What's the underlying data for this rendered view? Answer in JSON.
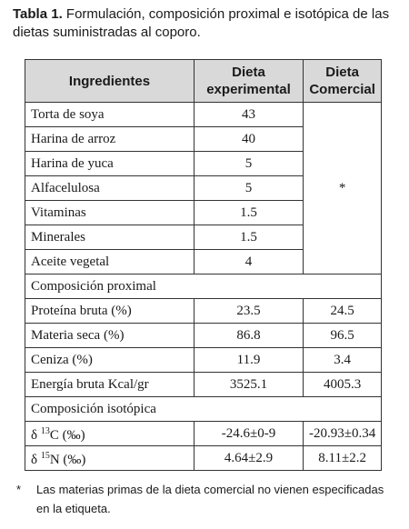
{
  "caption": {
    "label": "Tabla 1.",
    "text": "Formulación, composición proximal e isotópica de las dietas suministradas al coporo."
  },
  "table": {
    "headers": {
      "ingredientes": "Ingredientes",
      "experimental": "Dieta experimental",
      "comercial": "Dieta Comercial"
    },
    "commercial_ingredients_mark": "*",
    "ingredients": [
      {
        "name": "Torta de soya",
        "value": "43"
      },
      {
        "name": "Harina de arroz",
        "value": "40"
      },
      {
        "name": "Harina de yuca",
        "value": "5"
      },
      {
        "name": "Alfacelulosa",
        "value": "5"
      },
      {
        "name": "Vitaminas",
        "value": "1.5"
      },
      {
        "name": "Minerales",
        "value": "1.5"
      },
      {
        "name": "Aceite vegetal",
        "value": "4"
      }
    ],
    "proximal_title": "Composición proximal",
    "proximal": [
      {
        "name": "Proteína bruta (%)",
        "exp": "23.5",
        "com": "24.5"
      },
      {
        "name": "Materia seca (%)",
        "exp": "86.8",
        "com": "96.5"
      },
      {
        "name": "Ceniza (%)",
        "exp": "11.9",
        "com": "3.4"
      },
      {
        "name": "Energía bruta Kcal/gr",
        "exp": "3525.1",
        "com": "4005.3"
      }
    ],
    "isotopic_title": "Composición isotópica",
    "isotopic": [
      {
        "prefix": "δ ",
        "sup": "13",
        "suffix": "C (‰)",
        "exp": "-24.6±0-9",
        "com": "-20.93±0.34"
      },
      {
        "prefix": "δ ",
        "sup": "15",
        "suffix": "N (‰)",
        "exp": "4.64±2.9",
        "com": "8.11±2.2"
      }
    ]
  },
  "footnote": {
    "mark": "*",
    "text": "Las materias primas de la dieta comercial no vienen especificadas en la etiqueta."
  }
}
